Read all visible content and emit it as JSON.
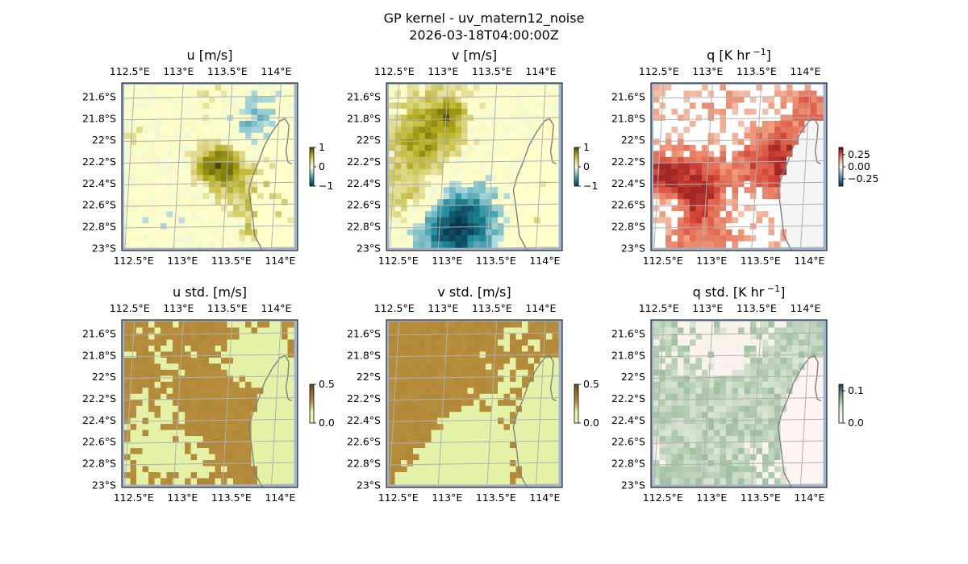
{
  "figure": {
    "title": "GP kernel - uv_matern12_noise",
    "subtitle": "2026-03-18T04:00:00Z"
  },
  "map_axes": {
    "lon_ticks": [
      "112.5°E",
      "113°E",
      "113.5°E",
      "114°E"
    ],
    "lon_values": [
      112.5,
      113.0,
      113.5,
      114.0
    ],
    "lat_ticks": [
      "21.6°S",
      "21.8°S",
      "22°S",
      "22.2°S",
      "22.4°S",
      "22.6°S",
      "22.8°S",
      "23°S"
    ],
    "lat_values": [
      -21.6,
      -21.8,
      -22.0,
      -22.2,
      -22.4,
      -22.6,
      -22.8,
      -23.0
    ],
    "lon_range": [
      112.42,
      114.22
    ],
    "lat_range": [
      -23.02,
      -21.47
    ]
  },
  "chart_data": [
    {
      "type": "heatmap",
      "title": "u [m/s]",
      "colormap": "diverging-teal-yellow-olive",
      "colorbar_ticks": [
        "1",
        "0",
        "−1"
      ],
      "colorbar_values": [
        1,
        0,
        -1
      ],
      "vlim": [
        -1,
        1
      ]
    },
    {
      "type": "heatmap",
      "title": "v [m/s]",
      "colormap": "diverging-teal-yellow-olive",
      "colorbar_ticks": [
        "1",
        "0",
        "−1"
      ],
      "colorbar_values": [
        1,
        0,
        -1
      ],
      "vlim": [
        -1,
        1
      ]
    },
    {
      "type": "heatmap",
      "title": "q [K hr",
      "title_sup": "−1",
      "title_end": "]",
      "colormap": "diverging-blue-white-red",
      "colorbar_ticks": [
        "0.25",
        "0.00",
        "−0.25"
      ],
      "colorbar_values": [
        0.25,
        0.0,
        -0.25
      ],
      "vlim": [
        -0.4,
        0.4
      ]
    },
    {
      "type": "heatmap",
      "title": "u std. [m/s]",
      "colormap": "sequential-lime-brown",
      "colorbar_ticks": [
        "0.5",
        "0.0"
      ],
      "colorbar_values": [
        0.5,
        0.0
      ],
      "vlim": [
        0,
        0.5
      ]
    },
    {
      "type": "heatmap",
      "title": "v std. [m/s]",
      "colormap": "sequential-lime-brown",
      "colorbar_ticks": [
        "0.5",
        "0.0"
      ],
      "colorbar_values": [
        0.5,
        0.0
      ],
      "vlim": [
        0,
        0.5
      ]
    },
    {
      "type": "heatmap",
      "title": "q std. [K hr",
      "title_sup": "−1",
      "title_end": "]",
      "colormap": "sequential-pink-green",
      "colorbar_ticks": [
        "0.1",
        "0.0"
      ],
      "colorbar_values": [
        0.1,
        0.0
      ],
      "vlim": [
        0,
        0.12
      ]
    }
  ],
  "colors": {
    "ocean": "#9db3d6",
    "land_outside": "#f2efe0",
    "coast": "#808080",
    "grid": "#b0b0b0"
  }
}
